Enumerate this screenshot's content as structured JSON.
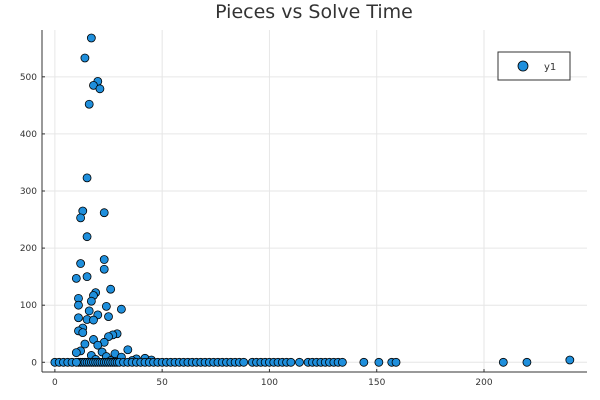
{
  "chart_data": {
    "type": "scatter",
    "title": "Pieces vs Solve Time",
    "xlabel": "",
    "ylabel": "",
    "xlim": [
      -6,
      248
    ],
    "ylim": [
      -17,
      582
    ],
    "xticks": [
      0,
      50,
      100,
      150,
      200
    ],
    "yticks": [
      0,
      100,
      200,
      300,
      400,
      500
    ],
    "grid": true,
    "legend": {
      "position": "top-right"
    },
    "marker_color": "#1f8fdc",
    "series": [
      {
        "name": "y1",
        "points": [
          [
            17,
            568
          ],
          [
            14,
            533
          ],
          [
            20,
            492
          ],
          [
            18,
            485
          ],
          [
            21,
            479
          ],
          [
            16,
            452
          ],
          [
            15,
            323
          ],
          [
            13,
            265
          ],
          [
            23,
            262
          ],
          [
            12,
            253
          ],
          [
            15,
            220
          ],
          [
            23,
            180
          ],
          [
            12,
            173
          ],
          [
            23,
            163
          ],
          [
            15,
            150
          ],
          [
            10,
            147
          ],
          [
            26,
            128
          ],
          [
            19,
            122
          ],
          [
            18,
            117
          ],
          [
            11,
            112
          ],
          [
            17,
            107
          ],
          [
            11,
            100
          ],
          [
            24,
            98
          ],
          [
            31,
            93
          ],
          [
            16,
            90
          ],
          [
            20,
            83
          ],
          [
            25,
            80
          ],
          [
            11,
            78
          ],
          [
            15,
            75
          ],
          [
            18,
            74
          ],
          [
            13,
            60
          ],
          [
            11,
            55
          ],
          [
            13,
            52
          ],
          [
            29,
            50
          ],
          [
            27,
            48
          ],
          [
            25,
            45
          ],
          [
            18,
            40
          ],
          [
            23,
            35
          ],
          [
            14,
            32
          ],
          [
            20,
            30
          ],
          [
            34,
            22
          ],
          [
            12,
            20
          ],
          [
            10,
            17
          ],
          [
            22,
            18
          ],
          [
            28,
            15
          ],
          [
            17,
            12
          ],
          [
            24,
            10
          ],
          [
            31,
            9
          ],
          [
            38,
            6
          ],
          [
            42,
            7
          ],
          [
            45,
            4
          ],
          [
            19,
            5
          ],
          [
            26,
            3
          ],
          [
            36,
            3
          ],
          [
            11,
            0
          ],
          [
            12,
            0
          ],
          [
            13,
            0
          ],
          [
            14,
            0
          ],
          [
            15,
            0
          ],
          [
            16,
            0
          ],
          [
            17,
            0
          ],
          [
            18,
            0
          ],
          [
            19,
            0
          ],
          [
            20,
            0
          ],
          [
            21,
            0
          ],
          [
            22,
            0
          ],
          [
            23,
            0
          ],
          [
            24,
            0
          ],
          [
            25,
            0
          ],
          [
            26,
            0
          ],
          [
            27,
            0
          ],
          [
            28,
            0
          ],
          [
            29,
            0
          ],
          [
            30,
            0
          ],
          [
            0,
            0
          ],
          [
            2,
            0
          ],
          [
            4,
            0
          ],
          [
            6,
            0
          ],
          [
            8,
            0
          ],
          [
            10,
            0
          ],
          [
            32,
            0
          ],
          [
            34,
            0
          ],
          [
            36,
            0
          ],
          [
            38,
            0
          ],
          [
            40,
            0
          ],
          [
            42,
            0
          ],
          [
            44,
            0
          ],
          [
            46,
            0
          ],
          [
            48,
            0
          ],
          [
            50,
            0
          ],
          [
            52,
            0
          ],
          [
            54,
            0
          ],
          [
            56,
            0
          ],
          [
            58,
            0
          ],
          [
            60,
            0
          ],
          [
            62,
            0
          ],
          [
            64,
            0
          ],
          [
            66,
            0
          ],
          [
            68,
            0
          ],
          [
            70,
            0
          ],
          [
            72,
            0
          ],
          [
            74,
            0
          ],
          [
            76,
            0
          ],
          [
            78,
            0
          ],
          [
            80,
            0
          ],
          [
            82,
            0
          ],
          [
            84,
            0
          ],
          [
            86,
            0
          ],
          [
            88,
            0
          ],
          [
            92,
            0
          ],
          [
            94,
            0
          ],
          [
            96,
            0
          ],
          [
            98,
            0
          ],
          [
            100,
            0
          ],
          [
            102,
            0
          ],
          [
            104,
            0
          ],
          [
            106,
            0
          ],
          [
            108,
            0
          ],
          [
            110,
            0
          ],
          [
            114,
            0
          ],
          [
            118,
            0
          ],
          [
            120,
            0
          ],
          [
            122,
            0
          ],
          [
            124,
            0
          ],
          [
            126,
            0
          ],
          [
            128,
            0
          ],
          [
            130,
            0
          ],
          [
            132,
            0
          ],
          [
            134,
            0
          ],
          [
            144,
            0
          ],
          [
            151,
            0
          ],
          [
            157,
            0
          ],
          [
            159,
            0
          ],
          [
            209,
            0
          ],
          [
            220,
            0
          ],
          [
            240,
            4
          ]
        ]
      }
    ]
  }
}
